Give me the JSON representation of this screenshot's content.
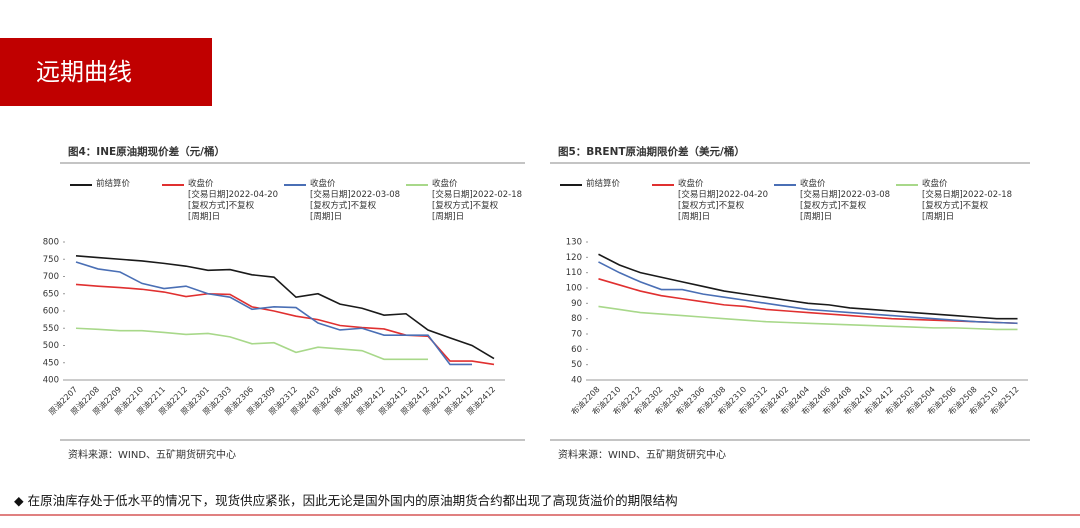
{
  "header": {
    "title": "远期曲线"
  },
  "chart_data": [
    {
      "type": "line",
      "title": "图4：INE原油期现价差（元/桶）",
      "source": "资料来源：WIND、五矿期货研究中心",
      "categories": [
        "原油2207",
        "原油2208",
        "原油2209",
        "原油2210",
        "原油2211",
        "原油2212",
        "原油2301",
        "原油2303",
        "原油2306",
        "原油2309",
        "原油2312",
        "原油2403",
        "原油2406",
        "原油2409",
        "原油2412",
        "原油2412",
        "原油2412",
        "原油2412",
        "原油2412",
        "原油2412"
      ],
      "ylim": [
        400,
        800
      ],
      "yticks": [
        400,
        450,
        500,
        550,
        600,
        650,
        700,
        750,
        800
      ],
      "series": [
        {
          "name": "前结算价",
          "color": "#1a1a1a",
          "values": [
            760,
            755,
            750,
            745,
            738,
            730,
            718,
            720,
            705,
            698,
            640,
            650,
            620,
            608,
            588,
            592,
            545,
            522,
            500,
            462
          ]
        },
        {
          "name": "收盘价\n[交易日期]2022-04-20\n[复权方式]不复权\n[周期]日",
          "color": "#e03030",
          "values": [
            677,
            672,
            668,
            663,
            655,
            642,
            650,
            648,
            612,
            600,
            585,
            575,
            558,
            552,
            548,
            530,
            527,
            455,
            455,
            445
          ]
        },
        {
          "name": "收盘价\n[交易日期]2022-03-08\n[复权方式]不复权\n[周期]日",
          "color": "#4a6fb5",
          "values": [
            742,
            722,
            713,
            680,
            665,
            672,
            650,
            640,
            605,
            612,
            610,
            565,
            545,
            550,
            530,
            530,
            530,
            445,
            445,
            null
          ]
        },
        {
          "name": "收盘价\n[交易日期]2022-02-18\n[复权方式]不复权\n[周期]日",
          "color": "#a8d88a",
          "values": [
            550,
            547,
            543,
            543,
            538,
            532,
            535,
            525,
            505,
            508,
            480,
            495,
            490,
            485,
            460,
            460,
            460,
            null,
            null,
            null
          ]
        }
      ]
    },
    {
      "type": "line",
      "title": "图5：BRENT原油期限价差（美元/桶）",
      "source": "资料来源：WIND、五矿期货研究中心",
      "categories": [
        "布油2208",
        "布油2210",
        "布油2212",
        "布油2302",
        "布油2304",
        "布油2306",
        "布油2308",
        "布油2310",
        "布油2312",
        "布油2402",
        "布油2404",
        "布油2406",
        "布油2408",
        "布油2410",
        "布油2412",
        "布油2502",
        "布油2504",
        "布油2506",
        "布油2508",
        "布油2510",
        "布油2512"
      ],
      "ylim": [
        40,
        130
      ],
      "yticks": [
        40,
        50,
        60,
        70,
        80,
        90,
        100,
        110,
        120,
        130
      ],
      "series": [
        {
          "name": "前结算价",
          "color": "#1a1a1a",
          "values": [
            122,
            115,
            110,
            107,
            104,
            101,
            98,
            96,
            94,
            92,
            90,
            89,
            87,
            86,
            85,
            84,
            83,
            82,
            81,
            80,
            80
          ]
        },
        {
          "name": "收盘价\n[交易日期]2022-04-20\n[复权方式]不复权\n[周期]日",
          "color": "#e03030",
          "values": [
            106,
            102,
            98,
            95,
            93,
            91,
            89,
            88,
            86,
            85,
            84,
            83,
            82,
            81,
            80,
            79.5,
            79,
            78.5,
            78,
            77.5,
            77
          ]
        },
        {
          "name": "收盘价\n[交易日期]2022-03-08\n[复权方式]不复权\n[周期]日",
          "color": "#4a6fb5",
          "values": [
            117,
            110,
            104,
            99,
            99,
            96,
            94,
            92,
            90,
            88,
            86,
            85,
            84,
            83,
            82,
            81,
            80,
            79,
            78,
            77.5,
            77
          ]
        },
        {
          "name": "收盘价\n[交易日期]2022-02-18\n[复权方式]不复权\n[周期]日",
          "color": "#a8d88a",
          "values": [
            88,
            86,
            84,
            83,
            82,
            81,
            80,
            79,
            78,
            77.5,
            77,
            76.5,
            76,
            75.5,
            75,
            74.5,
            74,
            74,
            73.5,
            73,
            73
          ]
        }
      ]
    }
  ],
  "footer": {
    "text": "◆ 在原油库存处于低水平的情况下，现货供应紧张，因此无论是国外国内的原油期货合约都出现了高现货溢价的期限结构"
  }
}
